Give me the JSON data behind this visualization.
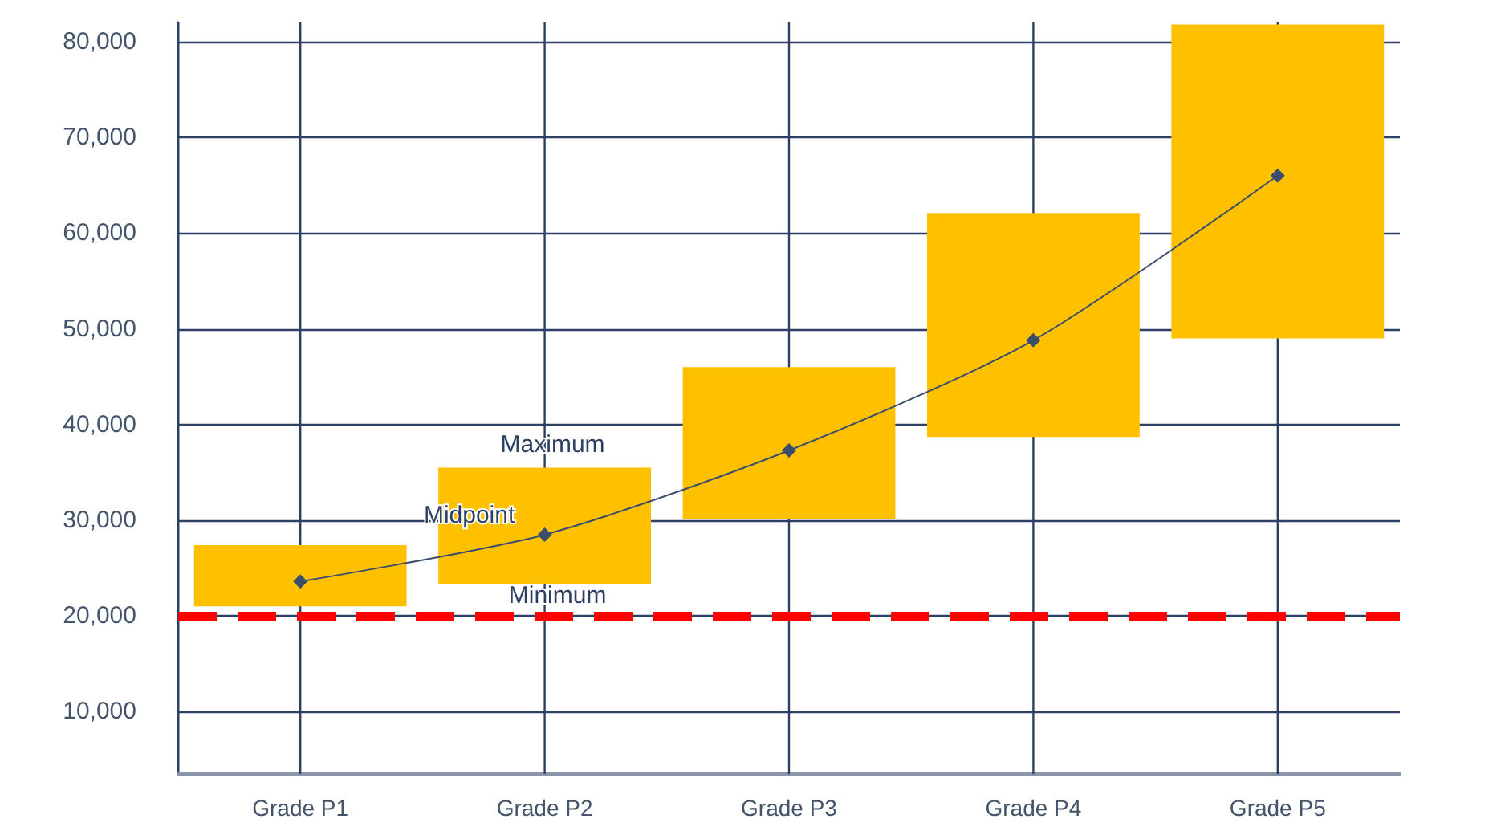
{
  "chart_data": {
    "type": "bar",
    "categories": [
      "Grade P1",
      "Grade P2",
      "Grade P3",
      "Grade P4",
      "Grade P5"
    ],
    "series": [
      {
        "color": "#ffc000",
        "base": [
          21000,
          23300,
          30100,
          38700,
          49000
        ],
        "values": [
          6400,
          12200,
          15900,
          23400,
          32800
        ]
      },
      {
        "type": "line",
        "color": "#3a4d6b",
        "values": [
          23600,
          28500,
          37300,
          48800,
          66000
        ],
        "marker": "diamond",
        "line_style": "solid"
      }
    ],
    "ylim": [
      3500,
      82000
    ],
    "yticks": [
      {
        "value": 10000,
        "label": "10,000"
      },
      {
        "value": 20000,
        "label": "20,000"
      },
      {
        "value": 30000,
        "label": "30,000"
      },
      {
        "value": 40000,
        "label": "40,000"
      },
      {
        "value": 50000,
        "label": "50,000"
      },
      {
        "value": 60000,
        "label": "60,000"
      },
      {
        "value": 70000,
        "label": "70,000"
      },
      {
        "value": 80000,
        "label": "80,000"
      }
    ],
    "grid": true,
    "ref_lines": [
      {
        "axis": "y",
        "value": 20000,
        "color": "#ff0000",
        "line_style": "dashed"
      }
    ],
    "annotations": [
      {
        "text": "Maximum",
        "x": "Grade P2",
        "y": 35500
      },
      {
        "text": "Midpoint",
        "x": "Grade P2",
        "y": 28500
      },
      {
        "text": "Minimum",
        "x": "Grade P2",
        "y": 23300
      }
    ]
  }
}
